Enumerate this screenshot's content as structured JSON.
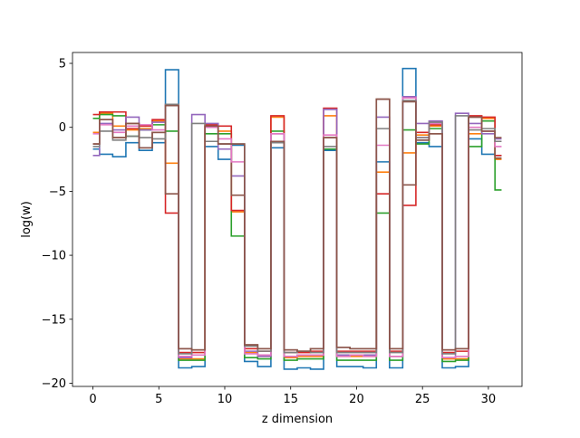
{
  "chart_data": {
    "type": "line",
    "drawstyle": "steps-mid",
    "title": "",
    "xlabel": "z dimension",
    "ylabel": "log(w)",
    "xlim": [
      -1.55,
      32.55
    ],
    "ylim": [
      -20.25,
      5.85
    ],
    "xticks": [
      0,
      5,
      10,
      15,
      20,
      25,
      30
    ],
    "yticks": [
      5,
      0,
      -5,
      -10,
      -15,
      -20
    ],
    "ytick_labels": [
      "5",
      "0",
      "−5",
      "−10",
      "−15",
      "−20"
    ],
    "grid": false,
    "legend": "none",
    "x": [
      0,
      1,
      2,
      3,
      4,
      5,
      6,
      7,
      8,
      9,
      10,
      11,
      12,
      13,
      14,
      15,
      16,
      17,
      18,
      19,
      20,
      21,
      22,
      23,
      24,
      25,
      26,
      27,
      28,
      29,
      30,
      31
    ],
    "series": [
      {
        "color": "#1f77b4",
        "values": [
          -1.7,
          -2.1,
          -2.3,
          -1.2,
          -1.8,
          -1.2,
          4.5,
          -18.8,
          -18.7,
          -1.5,
          -2.5,
          -1.4,
          -18.3,
          -18.7,
          -1.6,
          -18.9,
          -18.8,
          -18.9,
          -1.8,
          -18.7,
          -18.7,
          -18.8,
          -2.7,
          -18.8,
          4.6,
          -1.2,
          -1.5,
          -18.8,
          -18.7,
          -0.9,
          -2.1,
          -2.2
        ]
      },
      {
        "color": "#ff7f0e",
        "values": [
          -0.4,
          1.1,
          0.1,
          -0.2,
          -0.1,
          0.5,
          -2.8,
          -18.1,
          -18.1,
          0.2,
          -0.3,
          -6.6,
          -17.6,
          -17.9,
          0.8,
          -18.0,
          -17.9,
          -17.9,
          0.9,
          -17.9,
          -17.9,
          -17.9,
          -3.5,
          -17.9,
          -2.0,
          -0.6,
          0.1,
          -18.1,
          -18.1,
          -0.5,
          0.7,
          -2.5
        ]
      },
      {
        "color": "#2ca02c",
        "values": [
          0.7,
          1.0,
          0.9,
          -0.7,
          -0.2,
          0.2,
          -0.3,
          -18.2,
          -18.2,
          -0.5,
          -0.5,
          -8.5,
          -18.0,
          -18.1,
          -0.3,
          -18.2,
          -18.1,
          -18.1,
          -1.7,
          -18.2,
          -18.2,
          -18.2,
          -6.7,
          -18.2,
          -0.2,
          -1.3,
          -0.1,
          -18.3,
          -18.2,
          -1.5,
          0.5,
          -4.9
        ]
      },
      {
        "color": "#d62728",
        "values": [
          1.0,
          1.2,
          1.2,
          -0.1,
          0.1,
          0.6,
          -6.7,
          -17.6,
          -17.6,
          0.2,
          0.1,
          -6.5,
          -17.3,
          -17.5,
          0.9,
          -17.6,
          -17.6,
          -17.5,
          1.5,
          -17.5,
          -17.5,
          -17.5,
          -5.2,
          -17.5,
          -6.1,
          -0.4,
          0.2,
          -17.6,
          -17.5,
          0.9,
          0.8,
          -2.2
        ]
      },
      {
        "color": "#9467bd",
        "values": [
          -2.2,
          0.3,
          -0.2,
          0.8,
          -0.2,
          0.4,
          1.8,
          -18.0,
          1.0,
          0.3,
          -1.7,
          -3.8,
          -17.5,
          -17.9,
          -0.5,
          -17.9,
          -17.8,
          -17.8,
          1.4,
          -17.8,
          -17.8,
          -17.8,
          0.8,
          -17.9,
          2.4,
          0.3,
          0.5,
          -18.0,
          1.1,
          0.3,
          -0.5,
          -0.9
        ]
      },
      {
        "color": "#8c564b",
        "values": [
          -1.3,
          0.6,
          -0.8,
          0.3,
          -1.6,
          -0.4,
          -5.2,
          -17.3,
          -17.4,
          0.1,
          -1.3,
          -5.3,
          -17.0,
          -17.3,
          -1.1,
          -17.4,
          -17.5,
          -17.3,
          -0.8,
          -17.2,
          -17.3,
          -17.3,
          2.2,
          -17.3,
          -4.5,
          -1.0,
          -0.5,
          -17.4,
          -17.3,
          0.8,
          -0.3,
          -2.4
        ]
      },
      {
        "color": "#e377c2",
        "values": [
          -0.5,
          0.2,
          -0.4,
          0.1,
          0.2,
          -0.2,
          1.8,
          -17.9,
          -17.8,
          0.0,
          -0.9,
          -2.7,
          -17.7,
          -17.8,
          -0.5,
          -17.9,
          -17.8,
          -17.8,
          -0.6,
          -17.9,
          -17.8,
          -17.9,
          -1.4,
          -17.9,
          2.3,
          -0.8,
          0.3,
          -18.0,
          -17.9,
          0.0,
          -0.3,
          -1.5
        ]
      },
      {
        "color": "#7f7f7f",
        "values": [
          -1.5,
          -0.3,
          -1.0,
          -0.7,
          -0.8,
          -0.9,
          1.8,
          -17.7,
          0.3,
          -1.1,
          -1.3,
          -1.3,
          -17.1,
          -17.5,
          -1.2,
          -17.6,
          -17.5,
          -17.6,
          -1.5,
          -17.6,
          -17.6,
          -17.6,
          -0.1,
          -17.6,
          2.1,
          -0.8,
          0.4,
          -17.7,
          0.9,
          -0.2,
          -0.1,
          -1.1
        ]
      },
      {
        "color": "#8c564b",
        "values": [
          -1.3,
          0.6,
          -0.8,
          0.3,
          -1.6,
          -0.4,
          1.7,
          -17.3,
          -17.4,
          0.1,
          -1.3,
          -1.3,
          -17.0,
          -17.3,
          -1.1,
          -17.4,
          -17.5,
          -17.3,
          -0.8,
          -17.2,
          -17.3,
          -17.3,
          2.2,
          -17.3,
          2.0,
          -1.0,
          -0.5,
          -17.4,
          -17.3,
          0.8,
          -0.3,
          -0.8
        ]
      }
    ]
  }
}
